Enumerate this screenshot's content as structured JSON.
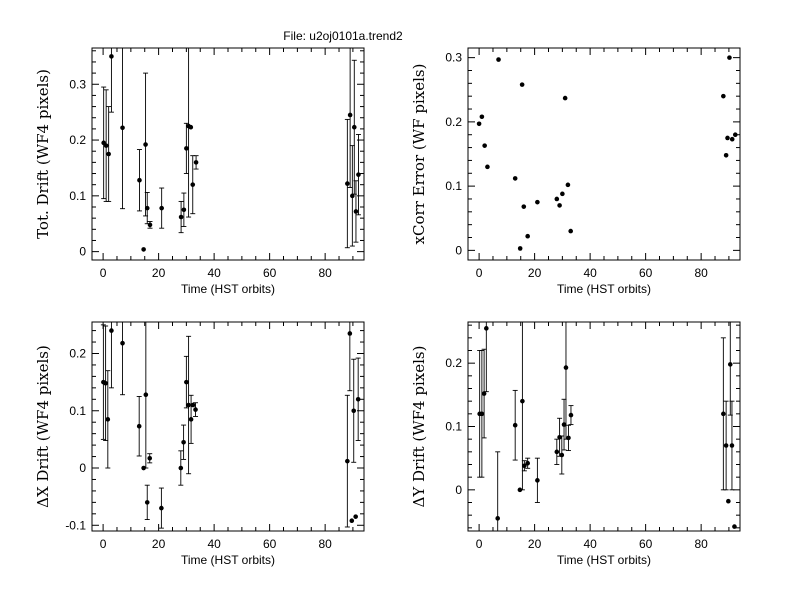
{
  "page_title": "File: u2oj0101a.trend2",
  "chart_data": [
    {
      "type": "scatter",
      "xlabel": "Time (HST orbits)",
      "ylabel": "Tot. Drift (WF4 pixels)",
      "xlim": [
        -4,
        94
      ],
      "ylim": [
        -0.015,
        0.365
      ],
      "xticks": [
        0,
        20,
        40,
        60,
        80
      ],
      "xtick_labels": [
        "0",
        "20",
        "40",
        "60",
        "80"
      ],
      "yticks": [
        0,
        0.1,
        0.2,
        0.3
      ],
      "ytick_labels": [
        "0",
        "0.1",
        "0.2",
        "0.3"
      ],
      "grid": false,
      "error_bars": true,
      "points": [
        {
          "x": 0.2,
          "y": 0.195,
          "err": 0.1
        },
        {
          "x": 1.1,
          "y": 0.19,
          "err": 0.1
        },
        {
          "x": 2.0,
          "y": 0.175,
          "err": 0.085
        },
        {
          "x": 3.0,
          "y": 0.35,
          "err": 0.1
        },
        {
          "x": 7.0,
          "y": 0.222,
          "err": 0.145
        },
        {
          "x": 13.1,
          "y": 0.128,
          "err": 0.055
        },
        {
          "x": 14.6,
          "y": 0.004,
          "err": 0.0
        },
        {
          "x": 15.3,
          "y": 0.192,
          "err": 0.128
        },
        {
          "x": 15.9,
          "y": 0.078,
          "err": 0.028
        },
        {
          "x": 16.9,
          "y": 0.048,
          "err": 0.006
        },
        {
          "x": 21.1,
          "y": 0.078,
          "err": 0.036
        },
        {
          "x": 28.1,
          "y": 0.062,
          "err": 0.028
        },
        {
          "x": 29.1,
          "y": 0.075,
          "err": 0.03
        },
        {
          "x": 30.0,
          "y": 0.185,
          "err": 0.045
        },
        {
          "x": 30.8,
          "y": 0.225,
          "err": 0.163
        },
        {
          "x": 31.6,
          "y": 0.223,
          "err": 0.0
        },
        {
          "x": 32.3,
          "y": 0.12,
          "err": 0.052
        },
        {
          "x": 33.5,
          "y": 0.16,
          "err": 0.012
        },
        {
          "x": 88.0,
          "y": 0.122,
          "err": 0.115
        },
        {
          "x": 89.0,
          "y": 0.245,
          "err": 0.13
        },
        {
          "x": 89.8,
          "y": 0.1,
          "err": 0.09
        },
        {
          "x": 90.5,
          "y": 0.223,
          "err": 0.12
        },
        {
          "x": 91.1,
          "y": 0.072,
          "err": 0.055
        },
        {
          "x": 92.0,
          "y": 0.138,
          "err": 0.072
        }
      ]
    },
    {
      "type": "scatter",
      "xlabel": "Time (HST orbits)",
      "ylabel": "xCorr Error (WF pixels)",
      "xlim": [
        -4,
        94
      ],
      "ylim": [
        -0.015,
        0.315
      ],
      "xticks": [
        0,
        20,
        40,
        60,
        80
      ],
      "xtick_labels": [
        "0",
        "20",
        "40",
        "60",
        "80"
      ],
      "yticks": [
        0,
        0.1,
        0.2,
        0.3
      ],
      "ytick_labels": [
        "0",
        "0.1",
        "0.2",
        "0.3"
      ],
      "grid": false,
      "error_bars": false,
      "points": [
        {
          "x": 0.0,
          "y": 0.197
        },
        {
          "x": 1.0,
          "y": 0.208
        },
        {
          "x": 2.0,
          "y": 0.163
        },
        {
          "x": 3.0,
          "y": 0.13
        },
        {
          "x": 7.0,
          "y": 0.297
        },
        {
          "x": 13.0,
          "y": 0.112
        },
        {
          "x": 14.8,
          "y": 0.003
        },
        {
          "x": 15.5,
          "y": 0.258
        },
        {
          "x": 16.1,
          "y": 0.068
        },
        {
          "x": 17.5,
          "y": 0.022
        },
        {
          "x": 21.0,
          "y": 0.075
        },
        {
          "x": 28.0,
          "y": 0.08
        },
        {
          "x": 29.0,
          "y": 0.07
        },
        {
          "x": 30.0,
          "y": 0.088
        },
        {
          "x": 31.0,
          "y": 0.237
        },
        {
          "x": 32.0,
          "y": 0.102
        },
        {
          "x": 33.0,
          "y": 0.03
        },
        {
          "x": 88.0,
          "y": 0.24
        },
        {
          "x": 89.0,
          "y": 0.148
        },
        {
          "x": 89.5,
          "y": 0.175
        },
        {
          "x": 90.2,
          "y": 0.3
        },
        {
          "x": 91.2,
          "y": 0.173
        },
        {
          "x": 92.3,
          "y": 0.18
        }
      ]
    },
    {
      "type": "scatter",
      "xlabel": "Time (HST orbits)",
      "ylabel": "ΔX Drift (WF4 pixels)",
      "xlim": [
        -4,
        94
      ],
      "ylim": [
        -0.11,
        0.255
      ],
      "xticks": [
        0,
        20,
        40,
        60,
        80
      ],
      "xtick_labels": [
        "0",
        "20",
        "40",
        "60",
        "80"
      ],
      "yticks": [
        -0.1,
        0,
        0.1,
        0.2
      ],
      "ytick_labels": [
        "-0.1",
        "0",
        "0.1",
        "0.2"
      ],
      "grid": false,
      "error_bars": true,
      "points": [
        {
          "x": 0.1,
          "y": 0.15,
          "err": 0.1
        },
        {
          "x": 0.9,
          "y": 0.148,
          "err": 0.1
        },
        {
          "x": 1.7,
          "y": 0.085,
          "err": 0.085
        },
        {
          "x": 3.0,
          "y": 0.24,
          "err": 0.1
        },
        {
          "x": 7.0,
          "y": 0.218,
          "err": 0.09
        },
        {
          "x": 13.0,
          "y": 0.073,
          "err": 0.052
        },
        {
          "x": 14.6,
          "y": 0.0,
          "err": 0.0
        },
        {
          "x": 15.4,
          "y": 0.128,
          "err": 0.128
        },
        {
          "x": 15.9,
          "y": -0.06,
          "err": 0.03
        },
        {
          "x": 16.8,
          "y": 0.017,
          "err": 0.008
        },
        {
          "x": 21.0,
          "y": -0.07,
          "err": 0.035
        },
        {
          "x": 28.0,
          "y": 0.0,
          "err": 0.03
        },
        {
          "x": 29.0,
          "y": 0.045,
          "err": 0.03
        },
        {
          "x": 30.0,
          "y": 0.15,
          "err": 0.045
        },
        {
          "x": 30.8,
          "y": 0.11,
          "err": 0.12
        },
        {
          "x": 31.7,
          "y": 0.085,
          "err": 0.042
        },
        {
          "x": 32.4,
          "y": 0.11,
          "err": 0.0
        },
        {
          "x": 33.3,
          "y": 0.102,
          "err": 0.012
        },
        {
          "x": 88.0,
          "y": 0.012,
          "err": 0.115
        },
        {
          "x": 88.9,
          "y": 0.235,
          "err": 0.1
        },
        {
          "x": 89.6,
          "y": -0.092,
          "err": 0.0
        },
        {
          "x": 90.3,
          "y": 0.1,
          "err": 0.09
        },
        {
          "x": 91.0,
          "y": -0.085,
          "err": 0.0
        },
        {
          "x": 91.9,
          "y": 0.12,
          "err": 0.072
        }
      ]
    },
    {
      "type": "scatter",
      "xlabel": "Time (HST orbits)",
      "ylabel": "ΔY Drift (WF4 pixels)",
      "xlim": [
        -4,
        94
      ],
      "ylim": [
        -0.065,
        0.265
      ],
      "xticks": [
        0,
        20,
        40,
        60,
        80
      ],
      "xtick_labels": [
        "0",
        "20",
        "40",
        "60",
        "80"
      ],
      "yticks": [
        0,
        0.1,
        0.2
      ],
      "ytick_labels": [
        "0",
        "0.1",
        "0.2"
      ],
      "grid": false,
      "error_bars": true,
      "points": [
        {
          "x": 0.2,
          "y": 0.12,
          "err": 0.1
        },
        {
          "x": 1.0,
          "y": 0.12,
          "err": 0.1
        },
        {
          "x": 1.8,
          "y": 0.152,
          "err": 0.07
        },
        {
          "x": 2.6,
          "y": 0.255,
          "err": 0.1
        },
        {
          "x": 6.7,
          "y": -0.045,
          "err": 0.105
        },
        {
          "x": 13.0,
          "y": 0.102,
          "err": 0.055
        },
        {
          "x": 14.7,
          "y": 0.0,
          "err": 0.0
        },
        {
          "x": 15.6,
          "y": 0.14,
          "err": 0.14
        },
        {
          "x": 16.3,
          "y": 0.038,
          "err": 0.008
        },
        {
          "x": 17.5,
          "y": 0.042,
          "err": 0.008
        },
        {
          "x": 21.0,
          "y": 0.015,
          "err": 0.035
        },
        {
          "x": 28.0,
          "y": 0.06,
          "err": 0.02
        },
        {
          "x": 29.0,
          "y": 0.083,
          "err": 0.03
        },
        {
          "x": 29.8,
          "y": 0.055,
          "err": 0.03
        },
        {
          "x": 30.6,
          "y": 0.103,
          "err": 0.04
        },
        {
          "x": 31.3,
          "y": 0.193,
          "err": 0.113
        },
        {
          "x": 32.2,
          "y": 0.082,
          "err": 0.02
        },
        {
          "x": 33.1,
          "y": 0.118,
          "err": 0.015
        },
        {
          "x": 88.0,
          "y": 0.12,
          "err": 0.12
        },
        {
          "x": 89.0,
          "y": 0.07,
          "err": 0.07
        },
        {
          "x": 89.8,
          "y": -0.018,
          "err": 0.0
        },
        {
          "x": 90.5,
          "y": 0.198,
          "err": 0.08
        },
        {
          "x": 91.1,
          "y": 0.07,
          "err": 0.07
        },
        {
          "x": 92.0,
          "y": -0.058,
          "err": 0.0
        }
      ]
    }
  ]
}
